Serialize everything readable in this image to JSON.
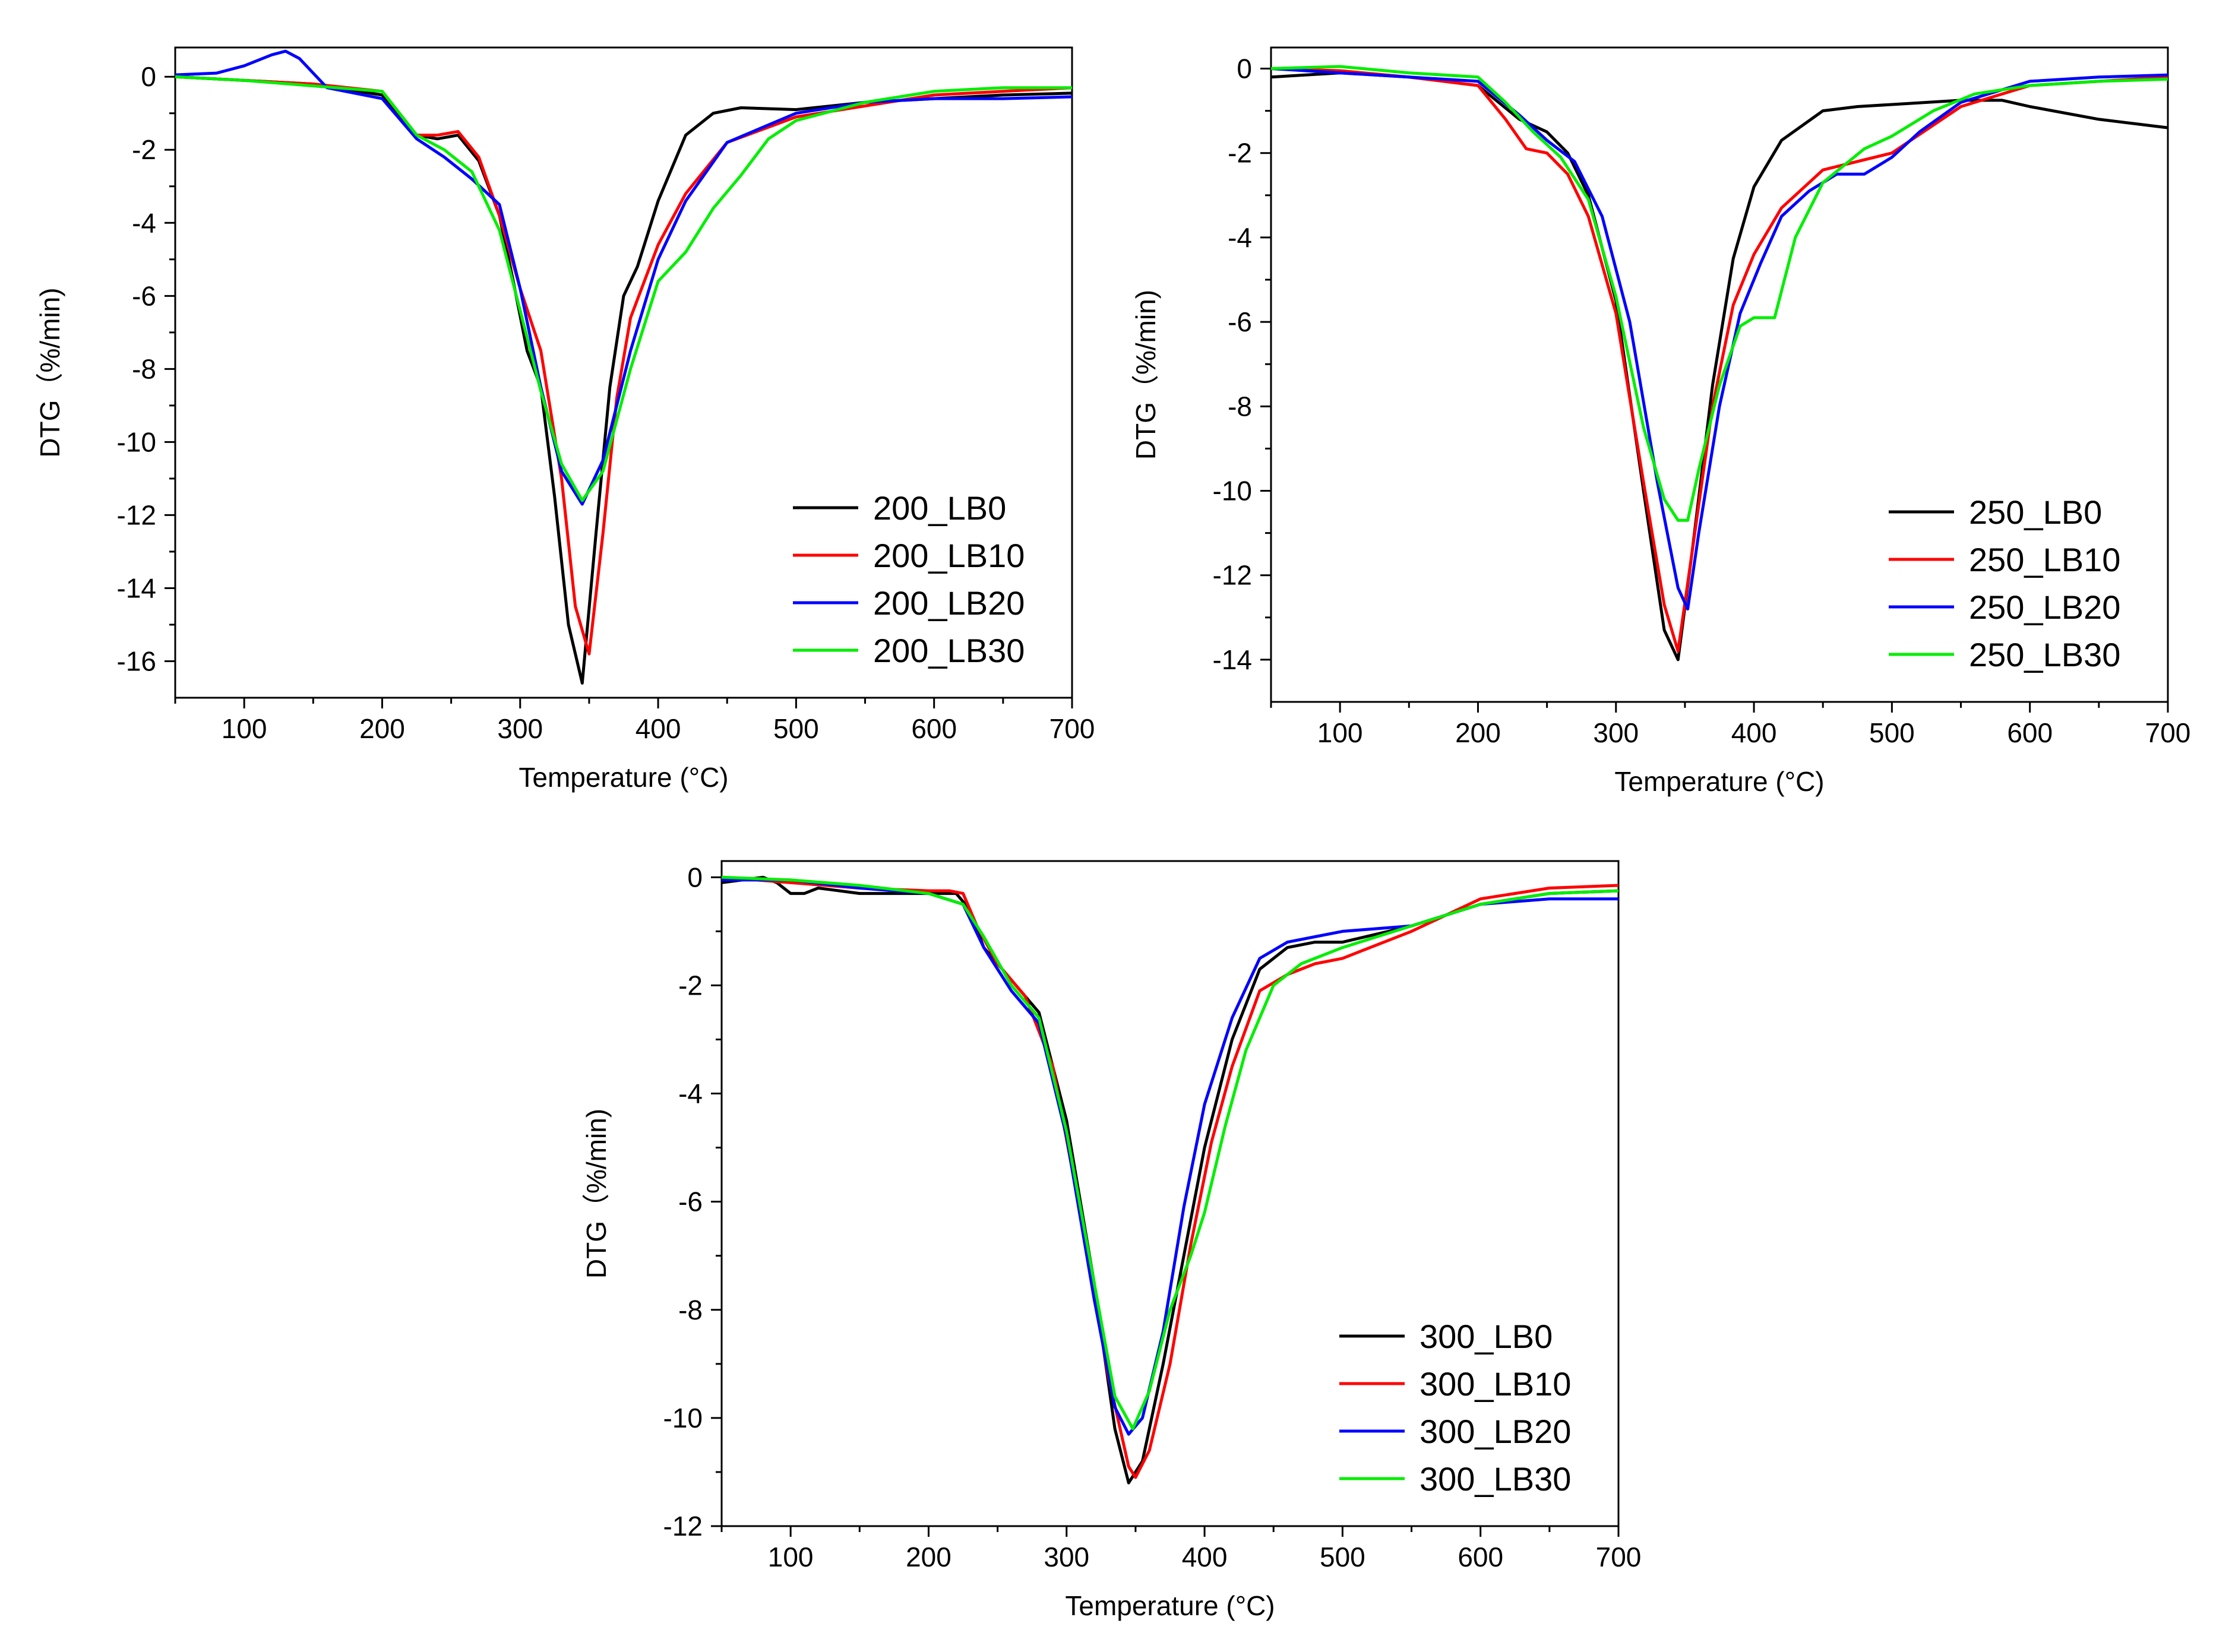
{
  "chart_data": [
    {
      "type": "line",
      "id": "p200",
      "xlabel": "Temperature (°C)",
      "ylabel": "DTG（%/min)",
      "xlim": [
        50,
        700
      ],
      "ylim": [
        -17,
        0.8
      ],
      "xticks": [
        100,
        200,
        300,
        400,
        500,
        600,
        700
      ],
      "yticks": [
        0,
        -2,
        -4,
        -6,
        -8,
        -10,
        -12,
        -14,
        -16
      ],
      "legend_position": "bottom-right",
      "series": [
        {
          "name": "200_LB0",
          "color": "#000000",
          "x": [
            50,
            100,
            150,
            200,
            225,
            240,
            255,
            270,
            285,
            295,
            305,
            315,
            325,
            335,
            345,
            355,
            365,
            375,
            385,
            400,
            420,
            440,
            460,
            500,
            550,
            600,
            650,
            700
          ],
          "y": [
            0,
            -0.1,
            -0.2,
            -0.5,
            -1.6,
            -1.7,
            -1.6,
            -2.3,
            -3.8,
            -5.6,
            -7.5,
            -8.5,
            -11.5,
            -15,
            -16.6,
            -12.5,
            -8.5,
            -6,
            -5.2,
            -3.4,
            -1.6,
            -1.0,
            -0.85,
            -0.9,
            -0.7,
            -0.6,
            -0.5,
            -0.45
          ]
        },
        {
          "name": "200_LB10",
          "color": "#ff0000",
          "x": [
            50,
            100,
            150,
            200,
            225,
            240,
            255,
            270,
            285,
            300,
            315,
            330,
            340,
            350,
            360,
            370,
            380,
            400,
            420,
            450,
            500,
            550,
            600,
            650,
            700
          ],
          "y": [
            0,
            -0.1,
            -0.2,
            -0.4,
            -1.6,
            -1.6,
            -1.5,
            -2.2,
            -3.8,
            -5.8,
            -7.5,
            -11,
            -14.5,
            -15.8,
            -12.5,
            -8.8,
            -6.6,
            -4.6,
            -3.2,
            -1.8,
            -1.1,
            -0.8,
            -0.5,
            -0.4,
            -0.3
          ]
        },
        {
          "name": "200_LB20",
          "color": "#0000ff",
          "x": [
            50,
            80,
            100,
            120,
            130,
            140,
            160,
            200,
            225,
            245,
            265,
            285,
            300,
            315,
            330,
            345,
            360,
            380,
            400,
            420,
            450,
            500,
            550,
            600,
            650,
            700
          ],
          "y": [
            0.05,
            0.1,
            0.3,
            0.6,
            0.7,
            0.5,
            -0.3,
            -0.6,
            -1.7,
            -2.2,
            -2.8,
            -3.5,
            -5.8,
            -8.5,
            -10.8,
            -11.7,
            -10.5,
            -7.5,
            -5.0,
            -3.4,
            -1.8,
            -1.0,
            -0.7,
            -0.6,
            -0.6,
            -0.55
          ]
        },
        {
          "name": "200_LB30",
          "color": "#00ee00",
          "x": [
            50,
            100,
            150,
            200,
            225,
            245,
            265,
            285,
            300,
            315,
            330,
            345,
            360,
            380,
            400,
            420,
            440,
            460,
            480,
            500,
            550,
            600,
            650,
            700
          ],
          "y": [
            0,
            -0.1,
            -0.25,
            -0.4,
            -1.6,
            -2.0,
            -2.6,
            -4.2,
            -6.4,
            -8.6,
            -10.6,
            -11.6,
            -10.8,
            -8.0,
            -5.6,
            -4.8,
            -3.6,
            -2.7,
            -1.7,
            -1.2,
            -0.7,
            -0.4,
            -0.3,
            -0.3
          ]
        }
      ]
    },
    {
      "type": "line",
      "id": "p250",
      "xlabel": "Temperature (°C)",
      "ylabel": "DTG（%/min)",
      "xlim": [
        50,
        700
      ],
      "ylim": [
        -15,
        0.5
      ],
      "xticks": [
        100,
        200,
        300,
        400,
        500,
        600,
        700
      ],
      "yticks": [
        0,
        -2,
        -4,
        -6,
        -8,
        -10,
        -12,
        -14
      ],
      "legend_position": "bottom-right",
      "series": [
        {
          "name": "250_LB0",
          "color": "#000000",
          "x": [
            50,
            100,
            150,
            200,
            230,
            250,
            265,
            280,
            300,
            320,
            335,
            345,
            355,
            370,
            385,
            400,
            420,
            450,
            475,
            500,
            550,
            580,
            600,
            650,
            700
          ],
          "y": [
            -0.2,
            -0.1,
            -0.2,
            -0.4,
            -1.2,
            -1.5,
            -2.0,
            -3.0,
            -5.5,
            -10,
            -13.3,
            -14.0,
            -11.5,
            -7.5,
            -4.5,
            -2.8,
            -1.7,
            -1.0,
            -0.9,
            -0.85,
            -0.75,
            -0.75,
            -0.9,
            -1.2,
            -1.4
          ]
        },
        {
          "name": "250_LB10",
          "color": "#ff0000",
          "x": [
            50,
            100,
            150,
            200,
            220,
            235,
            250,
            265,
            280,
            300,
            320,
            335,
            345,
            355,
            370,
            385,
            400,
            420,
            450,
            500,
            550,
            600,
            650,
            700
          ],
          "y": [
            0,
            -0.05,
            -0.2,
            -0.4,
            -1.2,
            -1.9,
            -2.0,
            -2.5,
            -3.5,
            -5.8,
            -9.8,
            -12.7,
            -13.8,
            -11.5,
            -8.0,
            -5.6,
            -4.4,
            -3.3,
            -2.4,
            -2.0,
            -0.9,
            -0.4,
            -0.3,
            -0.2
          ]
        },
        {
          "name": "250_LB20",
          "color": "#0000ff",
          "x": [
            50,
            100,
            150,
            200,
            230,
            250,
            270,
            290,
            310,
            330,
            345,
            352,
            360,
            375,
            390,
            405,
            420,
            440,
            460,
            480,
            500,
            520,
            550,
            600,
            650,
            700
          ],
          "y": [
            0,
            -0.1,
            -0.2,
            -0.3,
            -1.1,
            -1.7,
            -2.2,
            -3.5,
            -6.0,
            -9.8,
            -12.3,
            -12.8,
            -11.0,
            -8.0,
            -5.8,
            -4.6,
            -3.5,
            -2.9,
            -2.5,
            -2.5,
            -2.1,
            -1.5,
            -0.8,
            -0.3,
            -0.2,
            -0.15
          ]
        },
        {
          "name": "250_LB30",
          "color": "#00ee00",
          "x": [
            50,
            100,
            150,
            200,
            220,
            240,
            260,
            280,
            300,
            320,
            335,
            345,
            352,
            360,
            375,
            390,
            400,
            415,
            430,
            450,
            480,
            500,
            530,
            560,
            600,
            650,
            700
          ],
          "y": [
            0,
            0.05,
            -0.1,
            -0.2,
            -0.8,
            -1.5,
            -2.1,
            -3.1,
            -5.4,
            -8.5,
            -10.2,
            -10.7,
            -10.7,
            -9.5,
            -7.5,
            -6.1,
            -5.9,
            -5.9,
            -4.0,
            -2.7,
            -1.9,
            -1.6,
            -1.0,
            -0.6,
            -0.4,
            -0.3,
            -0.25
          ]
        }
      ]
    },
    {
      "type": "line",
      "id": "p300",
      "xlabel": "Temperature (°C)",
      "ylabel": "DTG（%/min)",
      "xlim": [
        50,
        700
      ],
      "ylim": [
        -12,
        0.3
      ],
      "xticks": [
        100,
        200,
        300,
        400,
        500,
        600,
        700
      ],
      "yticks": [
        0,
        -2,
        -4,
        -6,
        -8,
        -10,
        -12
      ],
      "legend_position": "bottom-right",
      "series": [
        {
          "name": "300_LB0",
          "color": "#000000",
          "x": [
            50,
            80,
            90,
            100,
            110,
            120,
            150,
            200,
            220,
            230,
            240,
            260,
            280,
            300,
            320,
            335,
            345,
            355,
            370,
            385,
            400,
            420,
            440,
            460,
            480,
            500,
            550,
            600,
            650,
            700
          ],
          "y": [
            -0.1,
            0,
            -0.1,
            -0.3,
            -0.3,
            -0.2,
            -0.3,
            -0.3,
            -0.3,
            -0.6,
            -1.3,
            -1.9,
            -2.5,
            -4.5,
            -7.5,
            -10.2,
            -11.2,
            -10.8,
            -9.0,
            -7.0,
            -5.0,
            -3.0,
            -1.7,
            -1.3,
            -1.2,
            -1.2,
            -0.9,
            -0.5,
            -0.3,
            -0.25
          ]
        },
        {
          "name": "300_LB10",
          "color": "#ff0000",
          "x": [
            50,
            100,
            150,
            200,
            215,
            225,
            235,
            250,
            270,
            290,
            310,
            330,
            345,
            350,
            360,
            375,
            390,
            405,
            420,
            440,
            460,
            480,
            500,
            520,
            550,
            600,
            650,
            700
          ],
          "y": [
            0,
            -0.1,
            -0.2,
            -0.25,
            -0.25,
            -0.3,
            -0.9,
            -1.6,
            -2.2,
            -3.5,
            -6.2,
            -9.2,
            -10.9,
            -11.1,
            -10.6,
            -9.0,
            -6.8,
            -4.9,
            -3.5,
            -2.1,
            -1.8,
            -1.6,
            -1.5,
            -1.3,
            -1.0,
            -0.4,
            -0.2,
            -0.15
          ]
        },
        {
          "name": "300_LB20",
          "color": "#0000ff",
          "x": [
            50,
            100,
            150,
            200,
            225,
            240,
            260,
            280,
            300,
            320,
            335,
            345,
            355,
            370,
            385,
            400,
            420,
            440,
            460,
            480,
            500,
            550,
            600,
            650,
            700
          ],
          "y": [
            -0.05,
            -0.05,
            -0.2,
            -0.3,
            -0.5,
            -1.3,
            -2.1,
            -2.7,
            -4.8,
            -7.8,
            -9.8,
            -10.3,
            -10.0,
            -8.4,
            -6.1,
            -4.2,
            -2.6,
            -1.5,
            -1.2,
            -1.1,
            -1.0,
            -0.9,
            -0.5,
            -0.4,
            -0.4
          ]
        },
        {
          "name": "300_LB30",
          "color": "#00ee00",
          "x": [
            50,
            100,
            150,
            200,
            225,
            240,
            260,
            280,
            300,
            320,
            335,
            348,
            360,
            375,
            390,
            400,
            415,
            430,
            450,
            470,
            500,
            550,
            600,
            650,
            700
          ],
          "y": [
            0,
            -0.05,
            -0.15,
            -0.3,
            -0.5,
            -1.1,
            -2.0,
            -2.6,
            -4.7,
            -7.5,
            -9.6,
            -10.2,
            -9.5,
            -8.0,
            -7.0,
            -6.2,
            -4.6,
            -3.2,
            -2.0,
            -1.6,
            -1.3,
            -0.9,
            -0.5,
            -0.3,
            -0.25
          ]
        }
      ]
    }
  ]
}
